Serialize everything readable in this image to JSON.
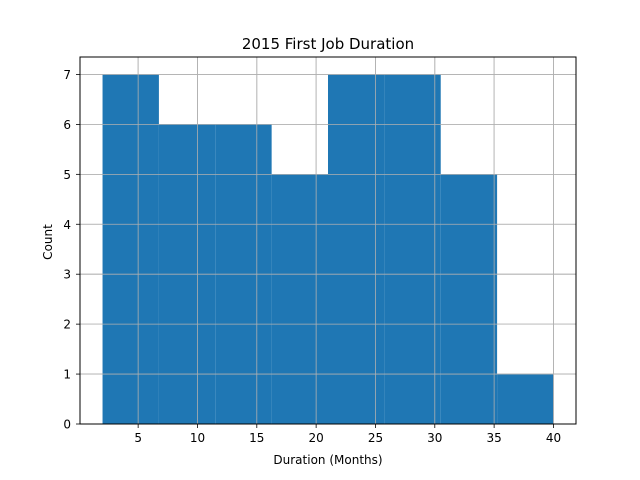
{
  "chart_data": {
    "type": "bar",
    "title": "2015 First Job Duration",
    "xlabel": "Duration (Months)",
    "ylabel": "Count",
    "bins": [
      {
        "start": 2,
        "end": 6.75,
        "value": 7
      },
      {
        "start": 6.75,
        "end": 11.5,
        "value": 6
      },
      {
        "start": 11.5,
        "end": 16.25,
        "value": 6
      },
      {
        "start": 16.25,
        "end": 21,
        "value": 5
      },
      {
        "start": 21,
        "end": 25.75,
        "value": 7
      },
      {
        "start": 25.75,
        "end": 30.5,
        "value": 7
      },
      {
        "start": 30.5,
        "end": 35.25,
        "value": 5
      },
      {
        "start": 35.25,
        "end": 40,
        "value": 1
      }
    ],
    "xlim": [
      0.1,
      41.9
    ],
    "ylim": [
      0,
      7.35
    ],
    "x_ticks": [
      5,
      10,
      15,
      20,
      25,
      30,
      35,
      40
    ],
    "y_ticks": [
      0,
      1,
      2,
      3,
      4,
      5,
      6,
      7
    ],
    "grid": true,
    "bar_color": "#1f77b4",
    "grid_color": "#b0b0b0"
  }
}
